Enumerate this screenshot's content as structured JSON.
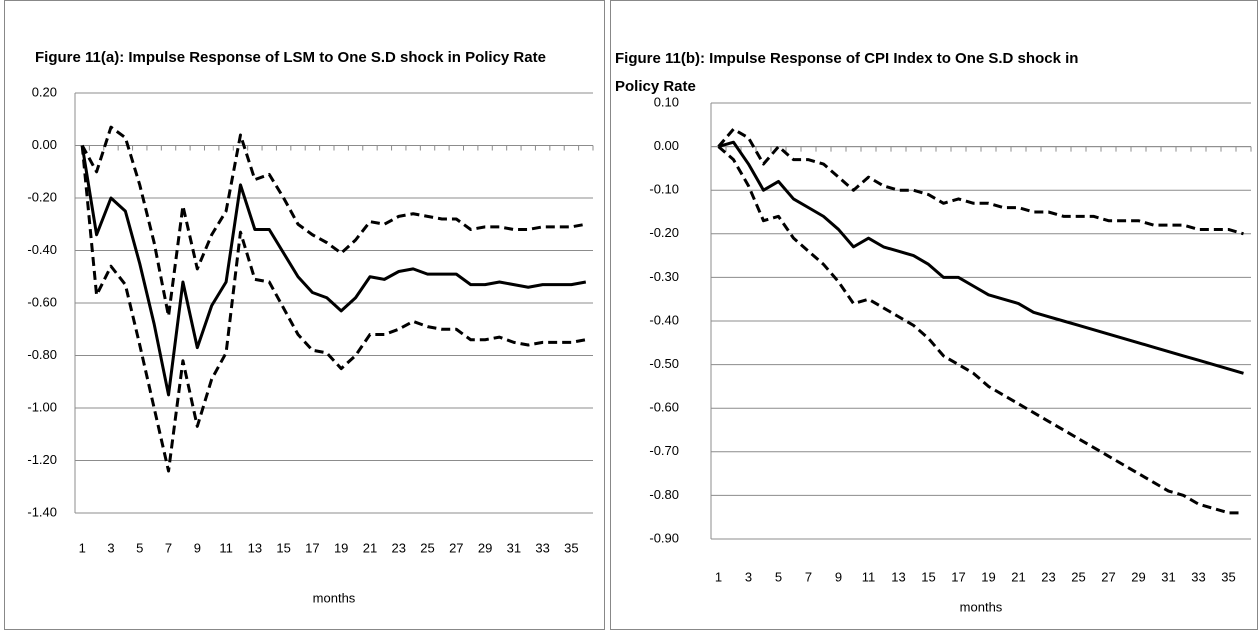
{
  "chart_data": [
    {
      "type": "line",
      "title": "Figure 11(a): Impulse Response of LSM to One S.D shock in Policy Rate",
      "x_label": "months",
      "categories": [
        1,
        null,
        3,
        null,
        5,
        null,
        7,
        null,
        9,
        null,
        11,
        null,
        13,
        null,
        15,
        null,
        17,
        null,
        19,
        null,
        21,
        null,
        23,
        null,
        25,
        null,
        27,
        null,
        29,
        null,
        31,
        null,
        33,
        null,
        35,
        null
      ],
      "series": [
        {
          "color": "#000000",
          "dashed": false,
          "values": [
            0.0,
            -0.34,
            -0.2,
            -0.25,
            -0.45,
            -0.68,
            -0.95,
            -0.52,
            -0.77,
            -0.61,
            -0.52,
            -0.15,
            -0.32,
            -0.32,
            -0.41,
            -0.5,
            -0.56,
            -0.58,
            -0.63,
            -0.58,
            -0.5,
            -0.51,
            -0.48,
            -0.47,
            -0.49,
            -0.49,
            -0.49,
            -0.53,
            -0.53,
            -0.52,
            -0.53,
            -0.54,
            -0.53,
            -0.53,
            -0.53,
            -0.52
          ]
        },
        {
          "color": "#000000",
          "dashed": true,
          "values": [
            0.0,
            -0.1,
            0.07,
            0.03,
            -0.15,
            -0.37,
            -0.65,
            -0.23,
            -0.47,
            -0.34,
            -0.25,
            0.04,
            -0.13,
            -0.11,
            -0.2,
            -0.3,
            -0.34,
            -0.37,
            -0.41,
            -0.36,
            -0.29,
            -0.3,
            -0.27,
            -0.26,
            -0.27,
            -0.28,
            -0.28,
            -0.32,
            -0.31,
            -0.31,
            -0.32,
            -0.32,
            -0.31,
            -0.31,
            -0.31,
            -0.3
          ]
        },
        {
          "color": "#000000",
          "dashed": true,
          "values": [
            0.0,
            -0.57,
            -0.46,
            -0.53,
            -0.76,
            -1.0,
            -1.24,
            -0.82,
            -1.07,
            -0.89,
            -0.79,
            -0.33,
            -0.51,
            -0.52,
            -0.62,
            -0.72,
            -0.78,
            -0.79,
            -0.85,
            -0.8,
            -0.72,
            -0.72,
            -0.7,
            -0.67,
            -0.69,
            -0.7,
            -0.7,
            -0.74,
            -0.74,
            -0.73,
            -0.75,
            -0.76,
            -0.75,
            -0.75,
            -0.75,
            -0.74
          ]
        }
      ],
      "ylim": [
        -1.4,
        0.2
      ],
      "yticks": [
        {
          "value": -1.4,
          "label": "-1.40"
        },
        {
          "value": -1.2,
          "label": "-1.20"
        },
        {
          "value": -1.0,
          "label": "-1.00"
        },
        {
          "value": -0.8,
          "label": "-0.80"
        },
        {
          "value": -0.6,
          "label": "-0.60"
        },
        {
          "value": -0.4,
          "label": "-0.40"
        },
        {
          "value": -0.2,
          "label": "-0.20"
        },
        {
          "value": 0,
          "label": "0.00"
        },
        {
          "value": 0.2,
          "label": "0.20"
        }
      ],
      "grid": true
    },
    {
      "type": "line",
      "title": "Figure 11(b): Impulse Response of  CPI Index to One S.D shock in Policy Rate",
      "x_label": "months",
      "categories": [
        1,
        null,
        3,
        null,
        5,
        null,
        7,
        null,
        9,
        null,
        11,
        null,
        13,
        null,
        15,
        null,
        17,
        null,
        19,
        null,
        21,
        null,
        23,
        null,
        25,
        null,
        27,
        null,
        29,
        null,
        31,
        null,
        33,
        null,
        35,
        null
      ],
      "series": [
        {
          "color": "#000000",
          "dashed": false,
          "values": [
            0.0,
            0.01,
            -0.04,
            -0.1,
            -0.08,
            -0.12,
            -0.14,
            -0.16,
            -0.19,
            -0.23,
            -0.21,
            -0.23,
            -0.24,
            -0.25,
            -0.27,
            -0.3,
            -0.3,
            -0.32,
            -0.34,
            -0.35,
            -0.36,
            -0.38,
            -0.39,
            -0.4,
            -0.41,
            -0.42,
            -0.43,
            -0.44,
            -0.45,
            -0.46,
            -0.47,
            -0.48,
            -0.49,
            -0.5,
            -0.51,
            -0.52
          ]
        },
        {
          "color": "#000000",
          "dashed": true,
          "values": [
            0.0,
            0.04,
            0.02,
            -0.04,
            0.0,
            -0.03,
            -0.03,
            -0.04,
            -0.07,
            -0.1,
            -0.07,
            -0.09,
            -0.1,
            -0.1,
            -0.11,
            -0.13,
            -0.12,
            -0.13,
            -0.13,
            -0.14,
            -0.14,
            -0.15,
            -0.15,
            -0.16,
            -0.16,
            -0.16,
            -0.17,
            -0.17,
            -0.17,
            -0.18,
            -0.18,
            -0.18,
            -0.19,
            -0.19,
            -0.19,
            -0.2
          ]
        },
        {
          "color": "#000000",
          "dashed": true,
          "values": [
            0.0,
            -0.03,
            -0.09,
            -0.17,
            -0.16,
            -0.21,
            -0.24,
            -0.27,
            -0.31,
            -0.36,
            -0.35,
            -0.37,
            -0.39,
            -0.41,
            -0.44,
            -0.48,
            -0.5,
            -0.52,
            -0.55,
            -0.57,
            -0.59,
            -0.61,
            -0.63,
            -0.65,
            -0.67,
            -0.69,
            -0.71,
            -0.73,
            -0.75,
            -0.77,
            -0.79,
            -0.8,
            -0.82,
            -0.83,
            -0.84,
            -0.84
          ]
        }
      ],
      "ylim": [
        -0.9,
        0.1
      ],
      "yticks": [
        {
          "value": -0.9,
          "label": "-0.90"
        },
        {
          "value": -0.8,
          "label": "-0.80"
        },
        {
          "value": -0.7,
          "label": "-0.70"
        },
        {
          "value": -0.6,
          "label": "-0.60"
        },
        {
          "value": -0.5,
          "label": "-0.50"
        },
        {
          "value": -0.4,
          "label": "-0.40"
        },
        {
          "value": -0.3,
          "label": "-0.30"
        },
        {
          "value": -0.2,
          "label": "-0.20"
        },
        {
          "value": -0.1,
          "label": "-0.10"
        },
        {
          "value": 0,
          "label": "0.00"
        },
        {
          "value": 0.1,
          "label": "0.10"
        }
      ],
      "grid": true
    }
  ]
}
